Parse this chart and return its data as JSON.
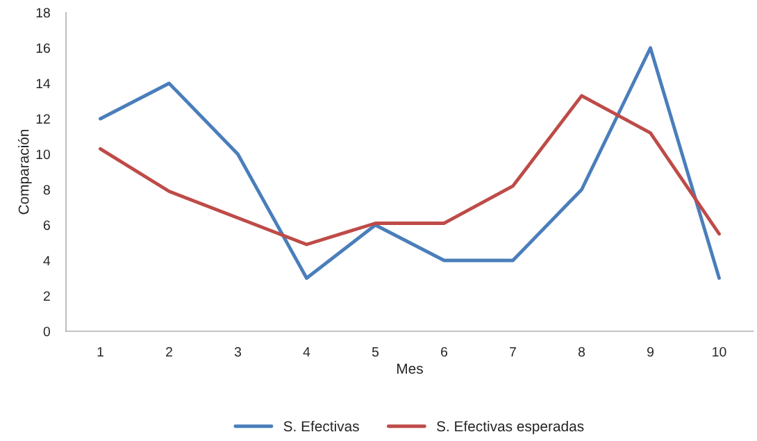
{
  "chart_data": {
    "type": "line",
    "xlabel": "Mes",
    "ylabel": "Comparación",
    "categories": [
      "1",
      "2",
      "3",
      "4",
      "5",
      "6",
      "7",
      "8",
      "9",
      "10"
    ],
    "series": [
      {
        "name": "S. Efectivas",
        "color": "#4a7ebb",
        "values": [
          12,
          14,
          10,
          3,
          6,
          4,
          4,
          8,
          16,
          3
        ]
      },
      {
        "name": "S. Efectivas esperadas",
        "color": "#be4b48",
        "values": [
          10.3,
          7.9,
          6.4,
          4.9,
          6.1,
          6.1,
          8.2,
          13.3,
          11.2,
          5.5
        ]
      }
    ],
    "ylim": [
      0,
      18
    ],
    "yticks": [
      0,
      2,
      4,
      6,
      8,
      10,
      12,
      14,
      16,
      18
    ],
    "grid": false,
    "legend": "bottom",
    "marker": "none",
    "line_style": "solid"
  }
}
